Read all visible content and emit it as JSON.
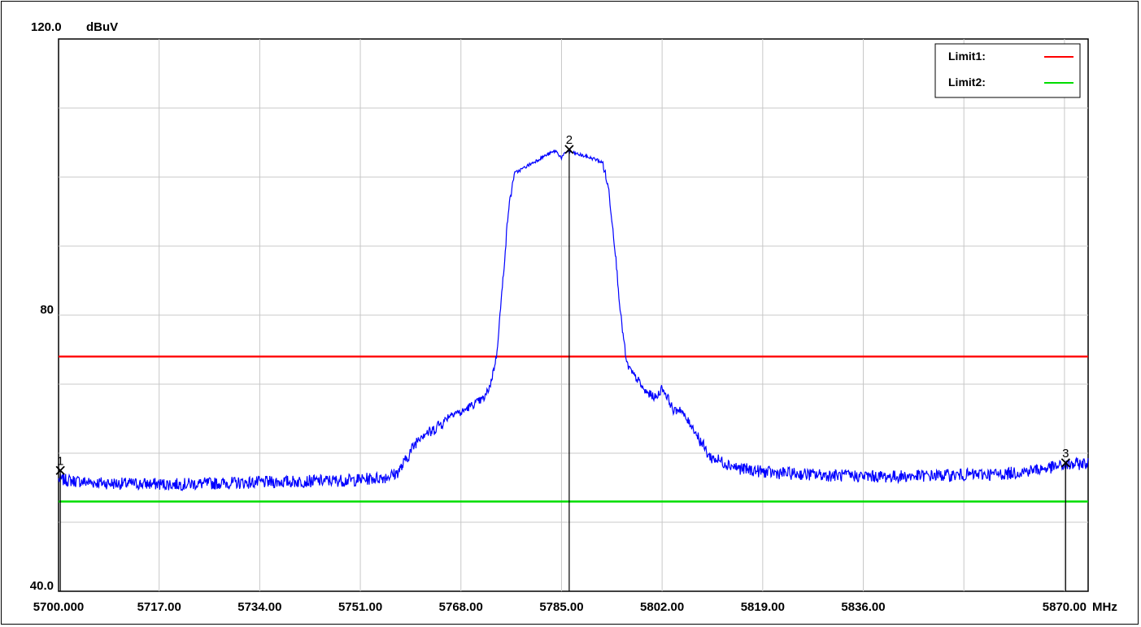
{
  "chart_data": {
    "type": "line",
    "y_top_label": "120.0",
    "y_unit": "dBuV",
    "x_unit": "MHz",
    "xlim": [
      5700,
      5874
    ],
    "ylim": [
      40,
      120
    ],
    "grid": true,
    "x_ticks": [
      {
        "value": 5700,
        "label": "5700.000"
      },
      {
        "value": 5717,
        "label": "5717.00"
      },
      {
        "value": 5734,
        "label": "5734.00"
      },
      {
        "value": 5751,
        "label": "5751.00"
      },
      {
        "value": 5768,
        "label": "5768.00"
      },
      {
        "value": 5785,
        "label": "5785.00"
      },
      {
        "value": 5802,
        "label": "5802.00"
      },
      {
        "value": 5819,
        "label": "5819.00"
      },
      {
        "value": 5836,
        "label": "5836.00"
      },
      {
        "value": 5870,
        "label": "5870.00"
      }
    ],
    "y_ticks": [
      {
        "value": 80,
        "label": "80"
      },
      {
        "value": 40,
        "label": "40.0"
      }
    ],
    "limits": [
      {
        "name": "Limit1:",
        "value": 74,
        "color": "#ff0000"
      },
      {
        "name": "Limit2:",
        "value": 53,
        "color": "#00dd00"
      }
    ],
    "legend_position": "top-right",
    "trace_color": "#0000ff",
    "trace": {
      "x": [
        5700,
        5705,
        5710,
        5720,
        5730,
        5740,
        5750,
        5755,
        5757,
        5758,
        5759,
        5760,
        5761,
        5762,
        5763,
        5764,
        5765,
        5766,
        5767,
        5768,
        5769,
        5770,
        5771,
        5772,
        5773,
        5774,
        5775,
        5776,
        5777,
        5778,
        5779,
        5780,
        5782,
        5784,
        5785,
        5786,
        5787,
        5789,
        5791,
        5792,
        5793,
        5794,
        5795,
        5796,
        5797,
        5798,
        5799,
        5800,
        5801,
        5802,
        5803,
        5804,
        5805,
        5806,
        5807,
        5808,
        5809,
        5810,
        5815,
        5820,
        5830,
        5840,
        5850,
        5860,
        5865,
        5870,
        5874
      ],
      "y": [
        56.2,
        55.8,
        55.6,
        55.5,
        55.7,
        55.9,
        56.1,
        56.5,
        57.0,
        58.0,
        59.5,
        61.0,
        62.5,
        63.0,
        63.0,
        64.0,
        64.5,
        65.5,
        66.0,
        65.8,
        66.5,
        67.0,
        67.5,
        68.0,
        70.0,
        74.0,
        84.0,
        95.0,
        100.5,
        101.0,
        101.5,
        102.0,
        103.0,
        103.8,
        102.8,
        103.8,
        103.5,
        103.0,
        102.5,
        102.0,
        98.0,
        90.0,
        80.0,
        73.0,
        71.5,
        70.5,
        69.0,
        68.5,
        68.0,
        69.5,
        68.0,
        66.0,
        66.5,
        65.0,
        64.0,
        62.5,
        61.0,
        59.5,
        57.8,
        57.2,
        56.8,
        56.6,
        56.8,
        57.0,
        57.6,
        58.2,
        58.6
      ]
    },
    "markers": [
      {
        "label": "1",
        "x": 5700.3,
        "y": 57.5
      },
      {
        "label": "2",
        "x": 5786.3,
        "y": 104.0
      },
      {
        "label": "3",
        "x": 5870.2,
        "y": 58.6
      }
    ]
  }
}
